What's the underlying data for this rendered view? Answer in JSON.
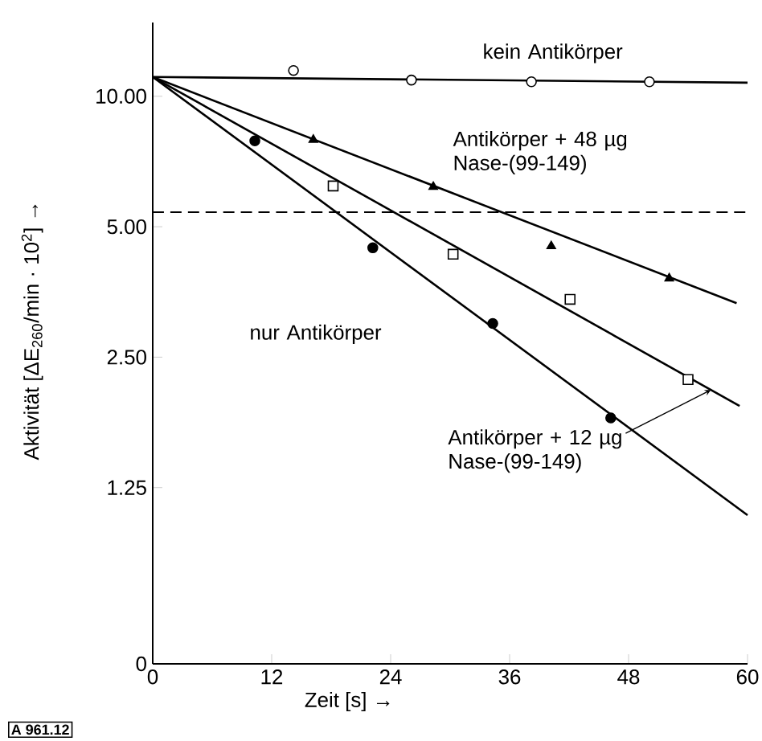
{
  "chart_data": {
    "type": "scatter",
    "xlabel": "Zeit [s] →",
    "ylabel": "Aktivität [ΔE$_{260}$/min · 10$^{2}$] →",
    "log": "y",
    "xlim": [
      0,
      60
    ],
    "xticks": [
      0,
      12,
      24,
      36,
      48,
      60
    ],
    "ylim": [
      0.49,
      14.8
    ],
    "yticks": [
      {
        "value": 0.49,
        "label": "0"
      },
      {
        "value": 1.25,
        "label": "1.25"
      },
      {
        "value": 2.5,
        "label": "2.50"
      },
      {
        "value": 5,
        "label": "5.00"
      },
      {
        "value": 10,
        "label": "10.00"
      }
    ],
    "series": [
      {
        "marker": "circle",
        "color": "#ffffff",
        "x": [
          14.2,
          26.1,
          38.2,
          50.1
        ],
        "values": [
          11.47,
          10.9,
          10.8,
          10.8
        ]
      },
      {
        "marker": "triangle",
        "color": "#000000",
        "x": [
          16.2,
          28.3,
          40.2,
          52.1
        ],
        "values": [
          7.94,
          6.18,
          4.51,
          3.8
        ]
      },
      {
        "marker": "square",
        "color": "#ffffff",
        "x": [
          18.2,
          30.3,
          42.1,
          54.0
        ],
        "values": [
          6.21,
          4.32,
          3.4,
          2.22
        ]
      },
      {
        "marker": "circle",
        "color": "#000000",
        "x": [
          10.3,
          22.2,
          34.3,
          46.2
        ],
        "values": [
          7.89,
          4.47,
          2.99,
          1.81
        ]
      },
      {
        "type": "line",
        "color": "#000000",
        "x": [
          0,
          60
        ],
        "values": [
          11.08,
          10.75
        ]
      },
      {
        "type": "line",
        "color": "#000000",
        "x": [
          0,
          58.9
        ],
        "values": [
          11.08,
          3.33
        ]
      },
      {
        "type": "line",
        "color": "#000000",
        "x": [
          0,
          59.2
        ],
        "values": [
          11.08,
          1.93
        ]
      },
      {
        "type": "line",
        "color": "#000000",
        "x": [
          0,
          60
        ],
        "values": [
          11.08,
          1.08
        ]
      }
    ],
    "ref_lines": [
      {
        "axis": "y",
        "value": 5.4,
        "line_style": "dashed",
        "color": "#000000"
      }
    ],
    "annotations": [
      "kein Antikörper",
      "Antikörper + 48 µg Nase-(99-149)",
      "nur Antikörper",
      {
        "text": "Antikörper + 12 µg Nase-(99-149)",
        "x": 56.3,
        "y": 2.1
      },
      "A 961.12"
    ]
  }
}
